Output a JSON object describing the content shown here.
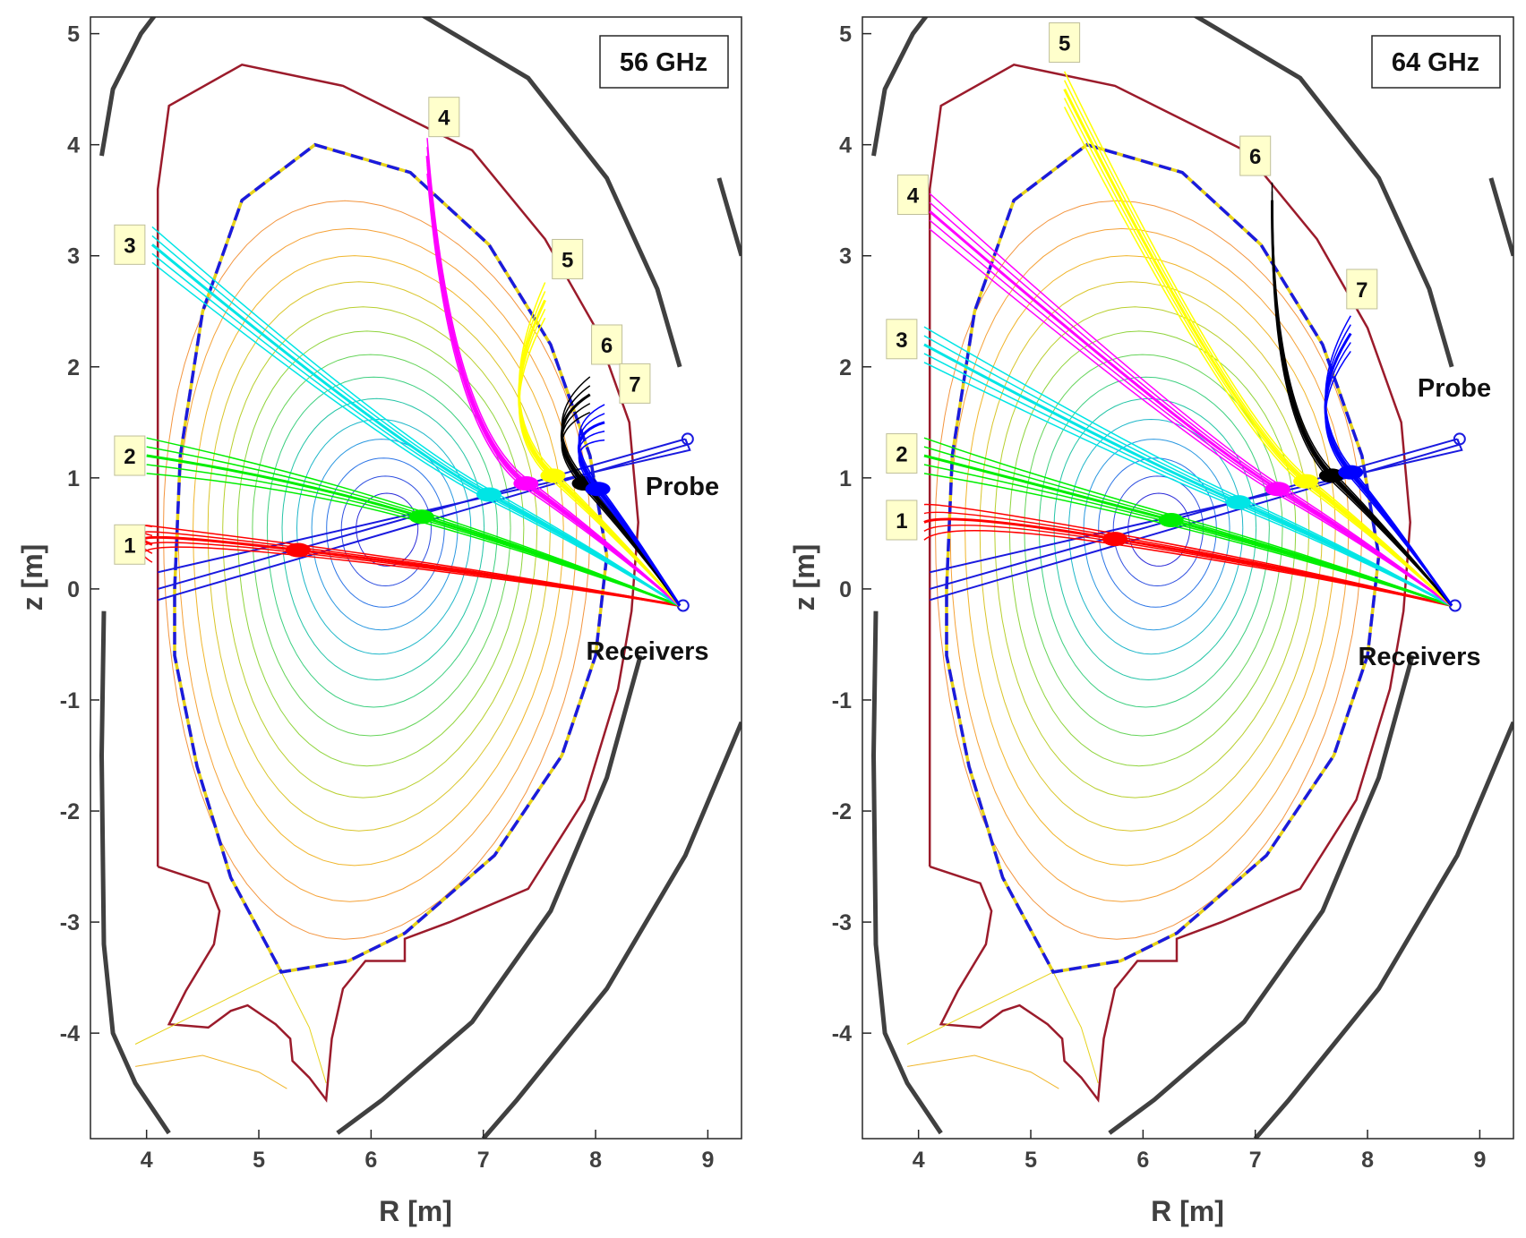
{
  "chart_data": [
    {
      "type": "line",
      "frequency_label": "56 GHz",
      "xlabel": "R [m]",
      "ylabel": "z [m]",
      "xlim": [
        3.5,
        9.3
      ],
      "ylim": [
        -4.95,
        5.15
      ],
      "xticks": [
        "4",
        "5",
        "6",
        "7",
        "8",
        "9"
      ],
      "yticks": [
        "5",
        "4",
        "3",
        "2",
        "1",
        "0",
        "-1",
        "-2",
        "-3",
        "-4"
      ],
      "annotations": [
        "Probe",
        "Receivers"
      ],
      "beam_colors": [
        "#ff0000",
        "#00ee00",
        "#00e5e5",
        "#ff00ff",
        "#ffff00",
        "#000000",
        "#0000ff"
      ],
      "beams": [
        {
          "label": "1",
          "label_pos": [
            3.85,
            0.4
          ],
          "color": "#ff0000",
          "end": [
            4.05,
            0.4
          ],
          "spot": [
            5.35,
            0.35
          ]
        },
        {
          "label": "2",
          "label_pos": [
            3.85,
            1.2
          ],
          "color": "#00ee00",
          "end": [
            4.0,
            1.2
          ],
          "spot": [
            6.45,
            0.65
          ]
        },
        {
          "label": "3",
          "label_pos": [
            3.85,
            3.1
          ],
          "color": "#00e5e5",
          "end": [
            4.05,
            3.1
          ],
          "spot": [
            7.05,
            0.85
          ]
        },
        {
          "label": "4",
          "label_pos": [
            6.65,
            4.25
          ],
          "color": "#ff00ff",
          "end": [
            6.5,
            3.9
          ],
          "spot": [
            7.38,
            0.95
          ]
        },
        {
          "label": "5",
          "label_pos": [
            7.75,
            2.97
          ],
          "color": "#ffff00",
          "end": [
            7.55,
            2.6
          ],
          "spot": [
            7.62,
            1.02
          ]
        },
        {
          "label": "6",
          "label_pos": [
            8.1,
            2.2
          ],
          "color": "#000000",
          "end": [
            7.95,
            1.75
          ],
          "spot": [
            7.9,
            0.95
          ]
        },
        {
          "label": "7",
          "label_pos": [
            8.35,
            1.85
          ],
          "color": "#0000ff",
          "end": [
            8.08,
            1.5
          ],
          "spot": [
            8.02,
            0.9
          ]
        }
      ]
    },
    {
      "type": "line",
      "frequency_label": "64 GHz",
      "xlabel": "R [m]",
      "ylabel": "z [m]",
      "xlim": [
        3.5,
        9.3
      ],
      "ylim": [
        -4.95,
        5.15
      ],
      "xticks": [
        "4",
        "5",
        "6",
        "7",
        "8",
        "9"
      ],
      "yticks": [
        "5",
        "4",
        "3",
        "2",
        "1",
        "0",
        "-1",
        "-2",
        "-3",
        "-4"
      ],
      "annotations": [
        "Probe",
        "Receivers"
      ],
      "beam_colors": [
        "#ff0000",
        "#00ee00",
        "#00e5e5",
        "#ff00ff",
        "#ffff00",
        "#000000",
        "#0000ff"
      ],
      "beams": [
        {
          "label": "1",
          "label_pos": [
            3.85,
            0.62
          ],
          "color": "#ff0000",
          "end": [
            4.05,
            0.6
          ],
          "spot": [
            5.75,
            0.45
          ]
        },
        {
          "label": "2",
          "label_pos": [
            3.85,
            1.22
          ],
          "color": "#00ee00",
          "end": [
            4.05,
            1.2
          ],
          "spot": [
            6.25,
            0.62
          ]
        },
        {
          "label": "3",
          "label_pos": [
            3.85,
            2.25
          ],
          "color": "#00e5e5",
          "end": [
            4.05,
            2.2
          ],
          "spot": [
            6.85,
            0.78
          ]
        },
        {
          "label": "4",
          "label_pos": [
            3.95,
            3.55
          ],
          "color": "#ff00ff",
          "end": [
            4.1,
            3.4
          ],
          "spot": [
            7.2,
            0.9
          ]
        },
        {
          "label": "5",
          "label_pos": [
            5.3,
            4.92
          ],
          "color": "#ffff00",
          "end": [
            5.3,
            4.5
          ],
          "spot": [
            7.45,
            0.97
          ]
        },
        {
          "label": "6",
          "label_pos": [
            7.0,
            3.9
          ],
          "color": "#000000",
          "end": [
            7.15,
            3.5
          ],
          "spot": [
            7.68,
            1.02
          ]
        },
        {
          "label": "7",
          "label_pos": [
            7.95,
            2.7
          ],
          "color": "#0000ff",
          "end": [
            7.85,
            2.3
          ],
          "spot": [
            7.85,
            1.05
          ]
        }
      ]
    }
  ]
}
